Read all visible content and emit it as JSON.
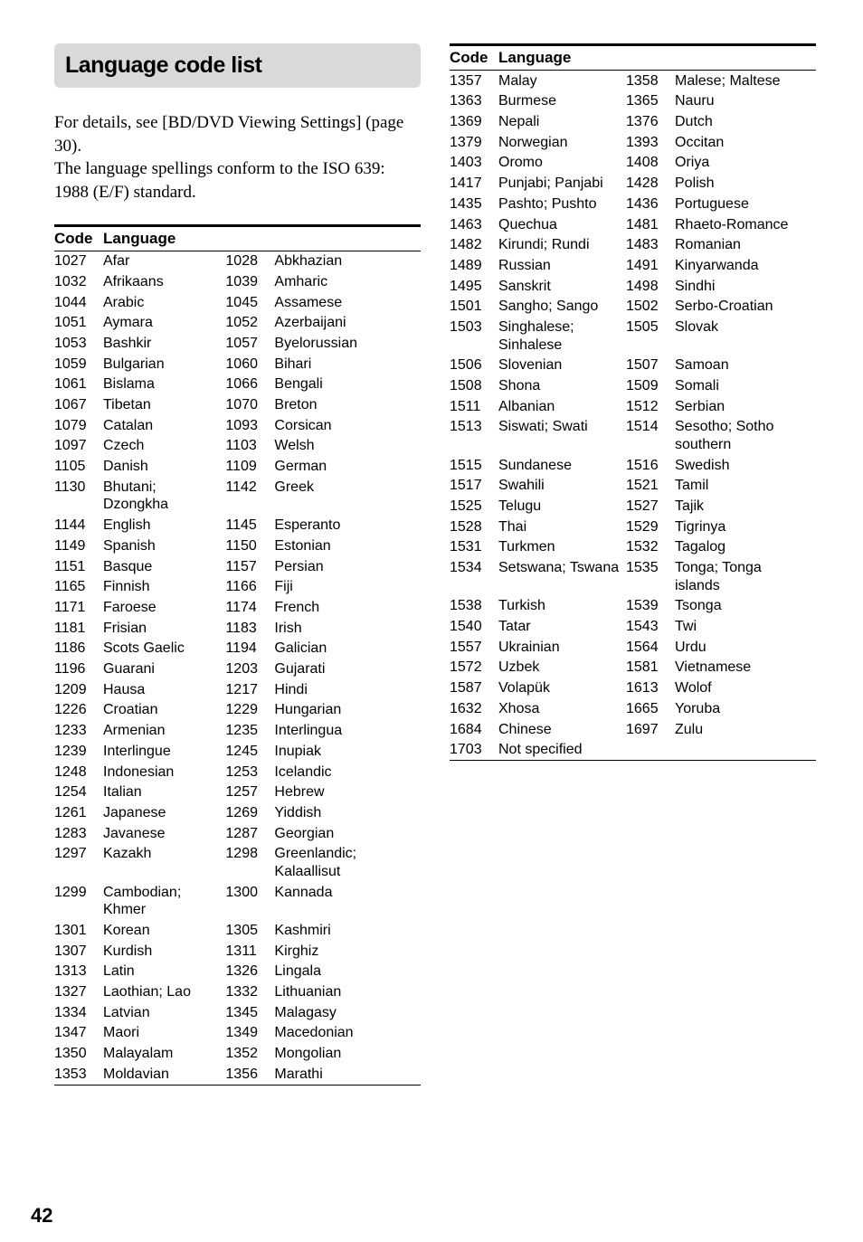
{
  "title": "Language code list",
  "intro_line1": "For details, see [BD/DVD Viewing Settings] (page 30).",
  "intro_line2": "The language spellings conform to the ISO 639: 1988 (E/F) standard.",
  "header_code": "Code",
  "header_lang": "Language",
  "page_number": "42",
  "left_table": [
    [
      "1027",
      "Afar",
      "1028",
      "Abkhazian"
    ],
    [
      "1032",
      "Afrikaans",
      "1039",
      "Amharic"
    ],
    [
      "1044",
      "Arabic",
      "1045",
      "Assamese"
    ],
    [
      "1051",
      "Aymara",
      "1052",
      "Azerbaijani"
    ],
    [
      "1053",
      "Bashkir",
      "1057",
      "Byelorussian"
    ],
    [
      "1059",
      "Bulgarian",
      "1060",
      "Bihari"
    ],
    [
      "1061",
      "Bislama",
      "1066",
      "Bengali"
    ],
    [
      "1067",
      "Tibetan",
      "1070",
      "Breton"
    ],
    [
      "1079",
      "Catalan",
      "1093",
      "Corsican"
    ],
    [
      "1097",
      "Czech",
      "1103",
      "Welsh"
    ],
    [
      "1105",
      "Danish",
      "1109",
      "German"
    ],
    [
      "1130",
      "Bhutani; Dzongkha",
      "1142",
      "Greek"
    ],
    [
      "1144",
      "English",
      "1145",
      "Esperanto"
    ],
    [
      "1149",
      "Spanish",
      "1150",
      "Estonian"
    ],
    [
      "1151",
      "Basque",
      "1157",
      "Persian"
    ],
    [
      "1165",
      "Finnish",
      "1166",
      "Fiji"
    ],
    [
      "1171",
      "Faroese",
      "1174",
      "French"
    ],
    [
      "1181",
      "Frisian",
      "1183",
      "Irish"
    ],
    [
      "1186",
      "Scots Gaelic",
      "1194",
      "Galician"
    ],
    [
      "1196",
      "Guarani",
      "1203",
      "Gujarati"
    ],
    [
      "1209",
      "Hausa",
      "1217",
      "Hindi"
    ],
    [
      "1226",
      "Croatian",
      "1229",
      "Hungarian"
    ],
    [
      "1233",
      "Armenian",
      "1235",
      "Interlingua"
    ],
    [
      "1239",
      "Interlingue",
      "1245",
      "Inupiak"
    ],
    [
      "1248",
      "Indonesian",
      "1253",
      "Icelandic"
    ],
    [
      "1254",
      "Italian",
      "1257",
      "Hebrew"
    ],
    [
      "1261",
      "Japanese",
      "1269",
      "Yiddish"
    ],
    [
      "1283",
      "Javanese",
      "1287",
      "Georgian"
    ],
    [
      "1297",
      "Kazakh",
      "1298",
      "Greenlandic; Kalaallisut"
    ],
    [
      "1299",
      "Cambodian; Khmer",
      "1300",
      "Kannada"
    ],
    [
      "1301",
      "Korean",
      "1305",
      "Kashmiri"
    ],
    [
      "1307",
      "Kurdish",
      "1311",
      "Kirghiz"
    ],
    [
      "1313",
      "Latin",
      "1326",
      "Lingala"
    ],
    [
      "1327",
      "Laothian; Lao",
      "1332",
      "Lithuanian"
    ],
    [
      "1334",
      "Latvian",
      "1345",
      "Malagasy"
    ],
    [
      "1347",
      "Maori",
      "1349",
      "Macedonian"
    ],
    [
      "1350",
      "Malayalam",
      "1352",
      "Mongolian"
    ],
    [
      "1353",
      "Moldavian",
      "1356",
      "Marathi"
    ]
  ],
  "right_table": [
    [
      "1357",
      "Malay",
      "1358",
      "Malese; Maltese"
    ],
    [
      "1363",
      "Burmese",
      "1365",
      "Nauru"
    ],
    [
      "1369",
      "Nepali",
      "1376",
      "Dutch"
    ],
    [
      "1379",
      "Norwegian",
      "1393",
      "Occitan"
    ],
    [
      "1403",
      "Oromo",
      "1408",
      "Oriya"
    ],
    [
      "1417",
      "Punjabi; Panjabi",
      "1428",
      "Polish"
    ],
    [
      "1435",
      "Pashto; Pushto",
      "1436",
      "Portuguese"
    ],
    [
      "1463",
      "Quechua",
      "1481",
      "Rhaeto-Romance"
    ],
    [
      "1482",
      "Kirundi; Rundi",
      "1483",
      "Romanian"
    ],
    [
      "1489",
      "Russian",
      "1491",
      "Kinyarwanda"
    ],
    [
      "1495",
      "Sanskrit",
      "1498",
      "Sindhi"
    ],
    [
      "1501",
      "Sangho; Sango",
      "1502",
      "Serbo-Croatian"
    ],
    [
      "1503",
      "Singhalese; Sinhalese",
      "1505",
      "Slovak"
    ],
    [
      "1506",
      "Slovenian",
      "1507",
      "Samoan"
    ],
    [
      "1508",
      "Shona",
      "1509",
      "Somali"
    ],
    [
      "1511",
      "Albanian",
      "1512",
      "Serbian"
    ],
    [
      "1513",
      "Siswati; Swati",
      "1514",
      "Sesotho; Sotho southern"
    ],
    [
      "1515",
      "Sundanese",
      "1516",
      "Swedish"
    ],
    [
      "1517",
      "Swahili",
      "1521",
      "Tamil"
    ],
    [
      "1525",
      "Telugu",
      "1527",
      "Tajik"
    ],
    [
      "1528",
      "Thai",
      "1529",
      "Tigrinya"
    ],
    [
      "1531",
      "Turkmen",
      "1532",
      "Tagalog"
    ],
    [
      "1534",
      "Setswana; Tswana",
      "1535",
      "Tonga; Tonga islands"
    ],
    [
      "1538",
      "Turkish",
      "1539",
      "Tsonga"
    ],
    [
      "1540",
      "Tatar",
      "1543",
      "Twi"
    ],
    [
      "1557",
      "Ukrainian",
      "1564",
      "Urdu"
    ],
    [
      "1572",
      "Uzbek",
      "1581",
      "Vietnamese"
    ],
    [
      "1587",
      "Volapük",
      "1613",
      "Wolof"
    ],
    [
      "1632",
      "Xhosa",
      "1665",
      "Yoruba"
    ],
    [
      "1684",
      "Chinese",
      "1697",
      "Zulu"
    ],
    [
      "1703",
      "Not specified",
      "",
      ""
    ]
  ]
}
